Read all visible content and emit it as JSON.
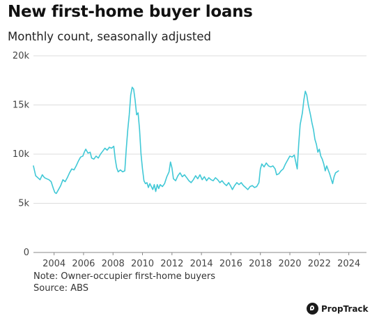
{
  "chart_data": {
    "type": "line",
    "title": "New first-home buyer loans",
    "subtitle": "Monthly count, seasonally adjusted",
    "xlabel": "",
    "ylabel": "",
    "xlim": [
      2002.6,
      2025.2
    ],
    "ylim": [
      0,
      20000
    ],
    "y_ticks": [
      {
        "value": 0,
        "label": "0"
      },
      {
        "value": 5000,
        "label": "5k"
      },
      {
        "value": 10000,
        "label": "10k"
      },
      {
        "value": 15000,
        "label": "15k"
      },
      {
        "value": 20000,
        "label": "20k"
      }
    ],
    "x_ticks": [
      {
        "value": 2004,
        "label": "2004"
      },
      {
        "value": 2006,
        "label": "2006"
      },
      {
        "value": 2008,
        "label": "2008"
      },
      {
        "value": 2010,
        "label": "2010"
      },
      {
        "value": 2012,
        "label": "2012"
      },
      {
        "value": 2014,
        "label": "2014"
      },
      {
        "value": 2016,
        "label": "2016"
      },
      {
        "value": 2018,
        "label": "2018"
      },
      {
        "value": 2020,
        "label": "2020"
      },
      {
        "value": 2022,
        "label": "2022"
      },
      {
        "value": 2024,
        "label": "2024"
      }
    ],
    "grid": "horizontal",
    "line_color": "#40c8d6",
    "series": [
      {
        "points": [
          [
            2002.6,
            8800
          ],
          [
            2002.75,
            7800
          ],
          [
            2002.9,
            7600
          ],
          [
            2003.05,
            7400
          ],
          [
            2003.2,
            7900
          ],
          [
            2003.35,
            7600
          ],
          [
            2003.5,
            7500
          ],
          [
            2003.65,
            7400
          ],
          [
            2003.8,
            7200
          ],
          [
            2003.95,
            6500
          ],
          [
            2004.05,
            6100
          ],
          [
            2004.15,
            6000
          ],
          [
            2004.3,
            6400
          ],
          [
            2004.45,
            6800
          ],
          [
            2004.6,
            7400
          ],
          [
            2004.75,
            7200
          ],
          [
            2004.9,
            7600
          ],
          [
            2005.05,
            8100
          ],
          [
            2005.2,
            8500
          ],
          [
            2005.35,
            8400
          ],
          [
            2005.5,
            8800
          ],
          [
            2005.65,
            9300
          ],
          [
            2005.8,
            9700
          ],
          [
            2005.95,
            9800
          ],
          [
            2006.05,
            10200
          ],
          [
            2006.15,
            10500
          ],
          [
            2006.3,
            10100
          ],
          [
            2006.45,
            10200
          ],
          [
            2006.55,
            9600
          ],
          [
            2006.7,
            9500
          ],
          [
            2006.85,
            9800
          ],
          [
            2007.0,
            9600
          ],
          [
            2007.15,
            10000
          ],
          [
            2007.3,
            10300
          ],
          [
            2007.45,
            10600
          ],
          [
            2007.6,
            10400
          ],
          [
            2007.75,
            10700
          ],
          [
            2007.9,
            10600
          ],
          [
            2008.05,
            10800
          ],
          [
            2008.15,
            9500
          ],
          [
            2008.25,
            8600
          ],
          [
            2008.35,
            8200
          ],
          [
            2008.5,
            8400
          ],
          [
            2008.65,
            8200
          ],
          [
            2008.8,
            8300
          ],
          [
            2008.9,
            10500
          ],
          [
            2009.0,
            12500
          ],
          [
            2009.1,
            14000
          ],
          [
            2009.2,
            16000
          ],
          [
            2009.3,
            16800
          ],
          [
            2009.4,
            16600
          ],
          [
            2009.5,
            15500
          ],
          [
            2009.6,
            14000
          ],
          [
            2009.7,
            14200
          ],
          [
            2009.8,
            12500
          ],
          [
            2009.9,
            10000
          ],
          [
            2010.0,
            8500
          ],
          [
            2010.1,
            7300
          ],
          [
            2010.2,
            7000
          ],
          [
            2010.3,
            7100
          ],
          [
            2010.4,
            6600
          ],
          [
            2010.5,
            7000
          ],
          [
            2010.6,
            6700
          ],
          [
            2010.7,
            6400
          ],
          [
            2010.8,
            6900
          ],
          [
            2010.9,
            6200
          ],
          [
            2011.0,
            6900
          ],
          [
            2011.1,
            6500
          ],
          [
            2011.2,
            6900
          ],
          [
            2011.35,
            6700
          ],
          [
            2011.5,
            7000
          ],
          [
            2011.65,
            7700
          ],
          [
            2011.8,
            8200
          ],
          [
            2011.9,
            9200
          ],
          [
            2012.0,
            8600
          ],
          [
            2012.1,
            7500
          ],
          [
            2012.25,
            7300
          ],
          [
            2012.4,
            7800
          ],
          [
            2012.55,
            8100
          ],
          [
            2012.7,
            7700
          ],
          [
            2012.85,
            7900
          ],
          [
            2013.0,
            7600
          ],
          [
            2013.15,
            7300
          ],
          [
            2013.3,
            7100
          ],
          [
            2013.45,
            7400
          ],
          [
            2013.6,
            7800
          ],
          [
            2013.75,
            7500
          ],
          [
            2013.9,
            7900
          ],
          [
            2014.05,
            7400
          ],
          [
            2014.2,
            7700
          ],
          [
            2014.35,
            7300
          ],
          [
            2014.5,
            7600
          ],
          [
            2014.65,
            7400
          ],
          [
            2014.8,
            7300
          ],
          [
            2014.95,
            7600
          ],
          [
            2015.1,
            7400
          ],
          [
            2015.25,
            7100
          ],
          [
            2015.4,
            7300
          ],
          [
            2015.55,
            7000
          ],
          [
            2015.7,
            6800
          ],
          [
            2015.85,
            7100
          ],
          [
            2016.0,
            6700
          ],
          [
            2016.1,
            6400
          ],
          [
            2016.25,
            6800
          ],
          [
            2016.4,
            7100
          ],
          [
            2016.55,
            6900
          ],
          [
            2016.7,
            7100
          ],
          [
            2016.85,
            6800
          ],
          [
            2017.0,
            6600
          ],
          [
            2017.15,
            6400
          ],
          [
            2017.3,
            6700
          ],
          [
            2017.45,
            6800
          ],
          [
            2017.6,
            6600
          ],
          [
            2017.75,
            6700
          ],
          [
            2017.9,
            7100
          ],
          [
            2018.0,
            8500
          ],
          [
            2018.1,
            9000
          ],
          [
            2018.25,
            8700
          ],
          [
            2018.4,
            9100
          ],
          [
            2018.55,
            8800
          ],
          [
            2018.7,
            8700
          ],
          [
            2018.85,
            8800
          ],
          [
            2019.0,
            8500
          ],
          [
            2019.1,
            7900
          ],
          [
            2019.25,
            8000
          ],
          [
            2019.4,
            8300
          ],
          [
            2019.55,
            8500
          ],
          [
            2019.7,
            9000
          ],
          [
            2019.85,
            9400
          ],
          [
            2020.0,
            9800
          ],
          [
            2020.15,
            9700
          ],
          [
            2020.3,
            9900
          ],
          [
            2020.4,
            9200
          ],
          [
            2020.5,
            8500
          ],
          [
            2020.6,
            11000
          ],
          [
            2020.7,
            13000
          ],
          [
            2020.85,
            14200
          ],
          [
            2020.95,
            15500
          ],
          [
            2021.05,
            16400
          ],
          [
            2021.15,
            16000
          ],
          [
            2021.25,
            15000
          ],
          [
            2021.4,
            14000
          ],
          [
            2021.5,
            13200
          ],
          [
            2021.6,
            12500
          ],
          [
            2021.7,
            11500
          ],
          [
            2021.8,
            11000
          ],
          [
            2021.9,
            10200
          ],
          [
            2022.0,
            10500
          ],
          [
            2022.1,
            9800
          ],
          [
            2022.2,
            9500
          ],
          [
            2022.3,
            9000
          ],
          [
            2022.4,
            8300
          ],
          [
            2022.5,
            8800
          ],
          [
            2022.6,
            8400
          ],
          [
            2022.7,
            8000
          ],
          [
            2022.8,
            7500
          ],
          [
            2022.9,
            7000
          ],
          [
            2023.0,
            7700
          ],
          [
            2023.1,
            8100
          ],
          [
            2023.2,
            8200
          ],
          [
            2023.3,
            8300
          ]
        ]
      }
    ]
  },
  "footer": {
    "note": "Note: Owner-occupier first-home buyers",
    "source": "Source: ABS",
    "brand": "PropTrack"
  }
}
